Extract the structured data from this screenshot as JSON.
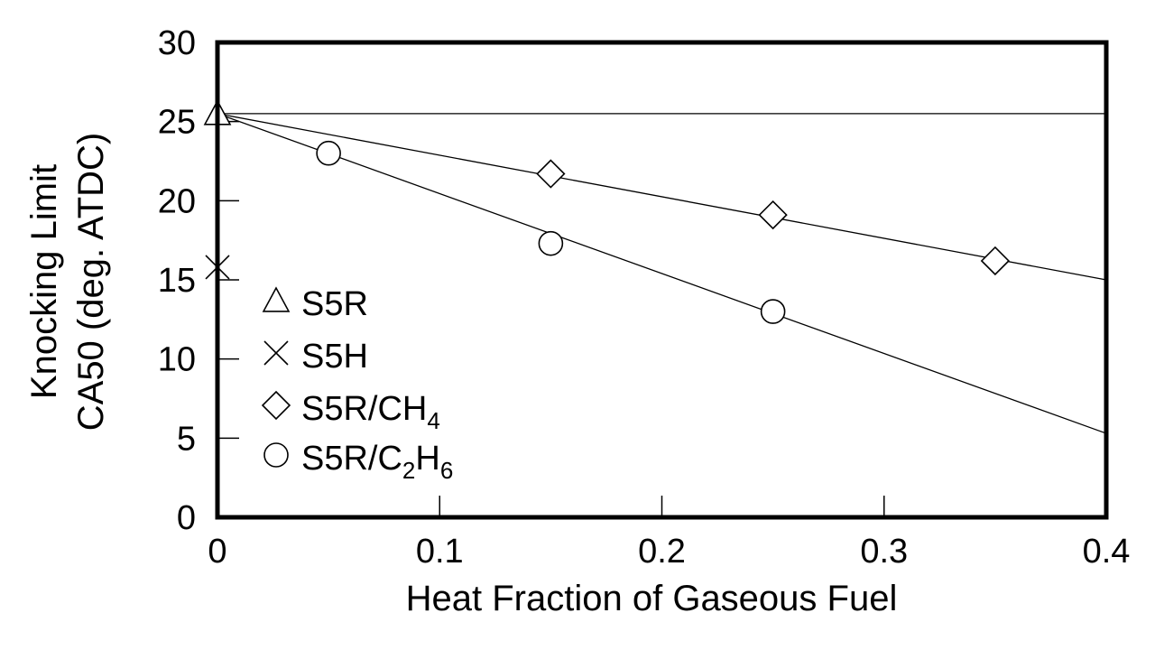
{
  "chart_data": {
    "type": "scatter",
    "title": "",
    "xlabel": "Heat Fraction of Gaseous Fuel",
    "ylabel_lines": [
      "Knocking Limit",
      "CA50 (deg. ATDC)"
    ],
    "xlim": [
      0,
      0.4
    ],
    "ylim": [
      0,
      30
    ],
    "x_ticks": [
      0,
      0.1,
      0.2,
      0.3,
      0.4
    ],
    "x_tick_labels": [
      "0",
      "0.1",
      "0.2",
      "0.3",
      "0.4"
    ],
    "y_ticks": [
      0,
      5,
      10,
      15,
      20,
      25,
      30
    ],
    "y_tick_labels": [
      "0",
      "5",
      "10",
      "15",
      "20",
      "25",
      "30"
    ],
    "grid": false,
    "legend_position": "left",
    "series": [
      {
        "name_main": "S5R",
        "marker": "triangle",
        "points": [
          [
            0.0,
            25.5
          ]
        ]
      },
      {
        "name_main": "S5H",
        "marker": "x",
        "points": [
          [
            0.0,
            15.8
          ]
        ]
      },
      {
        "name_main": "S5R/CH",
        "name_sub": "4",
        "marker": "diamond",
        "points": [
          [
            0.15,
            21.7
          ],
          [
            0.25,
            19.1
          ],
          [
            0.35,
            16.2
          ]
        ]
      },
      {
        "name_main": "S5R/C",
        "name_sub": "2",
        "name_main2": "H",
        "name_sub2": "6",
        "marker": "circle",
        "points": [
          [
            0.05,
            23.0
          ],
          [
            0.15,
            17.3
          ],
          [
            0.25,
            13.0
          ]
        ]
      }
    ],
    "lines": [
      {
        "x": [
          0,
          0.4
        ],
        "y": [
          25.5,
          25.5
        ]
      },
      {
        "x": [
          0,
          0.4
        ],
        "y": [
          25.5,
          15.0
        ]
      },
      {
        "x": [
          0,
          0.4
        ],
        "y": [
          25.5,
          5.3
        ]
      }
    ]
  }
}
